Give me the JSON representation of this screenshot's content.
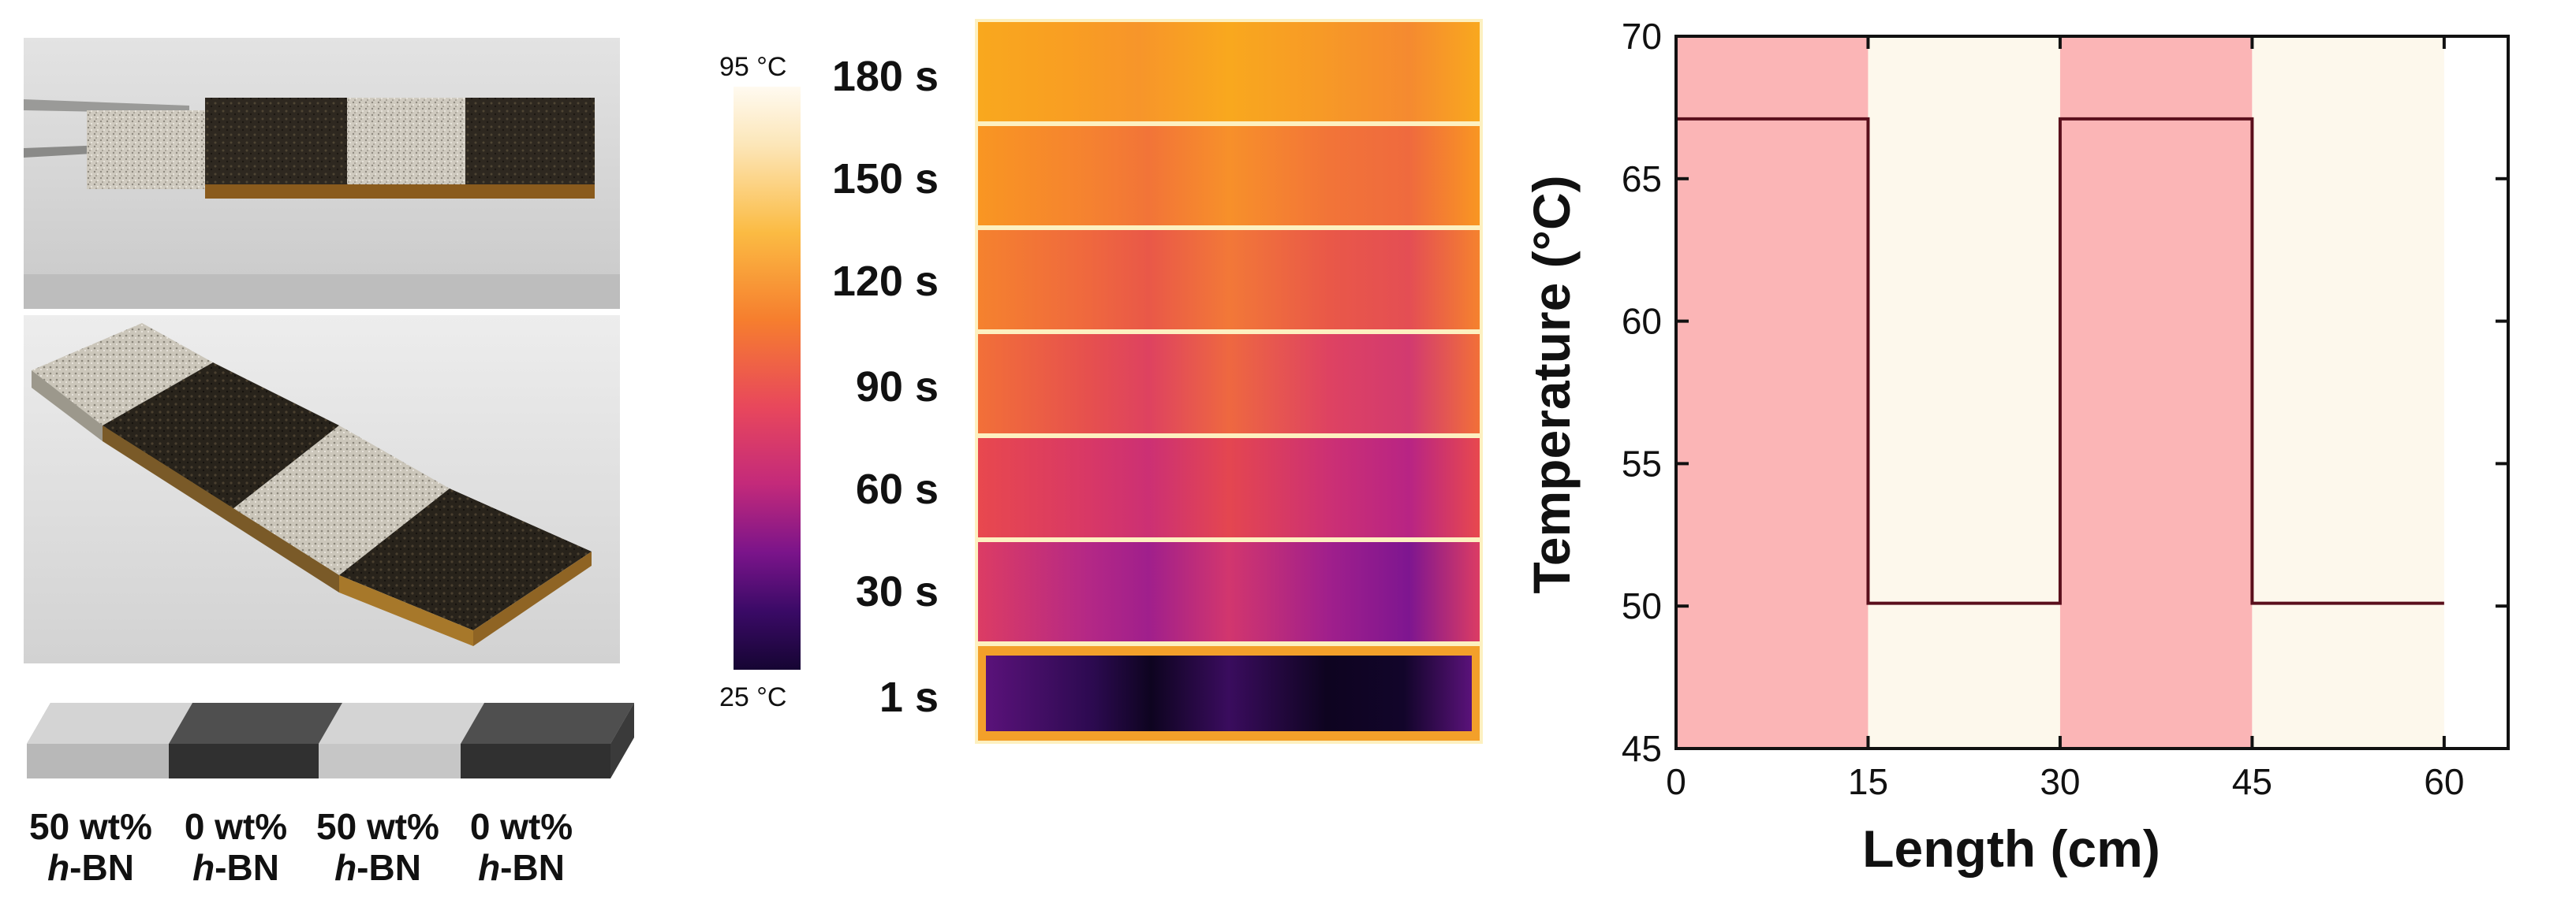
{
  "labels": {
    "samples": [
      {
        "content": "50 wt%",
        "material": "h",
        "suffix": "-BN"
      },
      {
        "content": "0 wt%",
        "material": "h",
        "suffix": "-BN"
      },
      {
        "content": "50 wt%",
        "material": "h",
        "suffix": "-BN"
      },
      {
        "content": "0 wt%",
        "material": "h",
        "suffix": "-BN"
      }
    ]
  },
  "thermal": {
    "colorbar_max": "95 °C",
    "colorbar_min": "25 °C",
    "times": [
      "180 s",
      "150 s",
      "120 s",
      "90 s",
      "60 s",
      "30 s",
      "1 s"
    ],
    "colors": {
      "hot": "#f9a21e",
      "warm": "#f46b3c",
      "mid": "#e23f66",
      "cool": "#a81f86",
      "cold": "#20083f"
    }
  },
  "chart_data": {
    "type": "line",
    "title": "",
    "xlabel": "Length (cm)",
    "ylabel": "Temperature (°C)",
    "xlim": [
      0,
      65
    ],
    "ylim": [
      45,
      70
    ],
    "xticks": [
      0,
      15,
      30,
      45,
      60
    ],
    "yticks": [
      45,
      50,
      55,
      60,
      65,
      70
    ],
    "series": [
      {
        "x": [
          0,
          15,
          15,
          30,
          30,
          45,
          45,
          60
        ],
        "y": [
          67.1,
          67.1,
          50.1,
          50.1,
          67.1,
          67.1,
          50.1,
          50.1
        ],
        "color": "#5a0f1c"
      }
    ],
    "bands": [
      {
        "x0": 0,
        "x1": 15,
        "color": "#fbb5b6"
      },
      {
        "x0": 15,
        "x1": 30,
        "color": "#fdf8ec"
      },
      {
        "x0": 30,
        "x1": 45,
        "color": "#fbb5b6"
      },
      {
        "x0": 45,
        "x1": 60,
        "color": "#fdf8ec"
      }
    ],
    "grid": false,
    "legend": "none"
  }
}
